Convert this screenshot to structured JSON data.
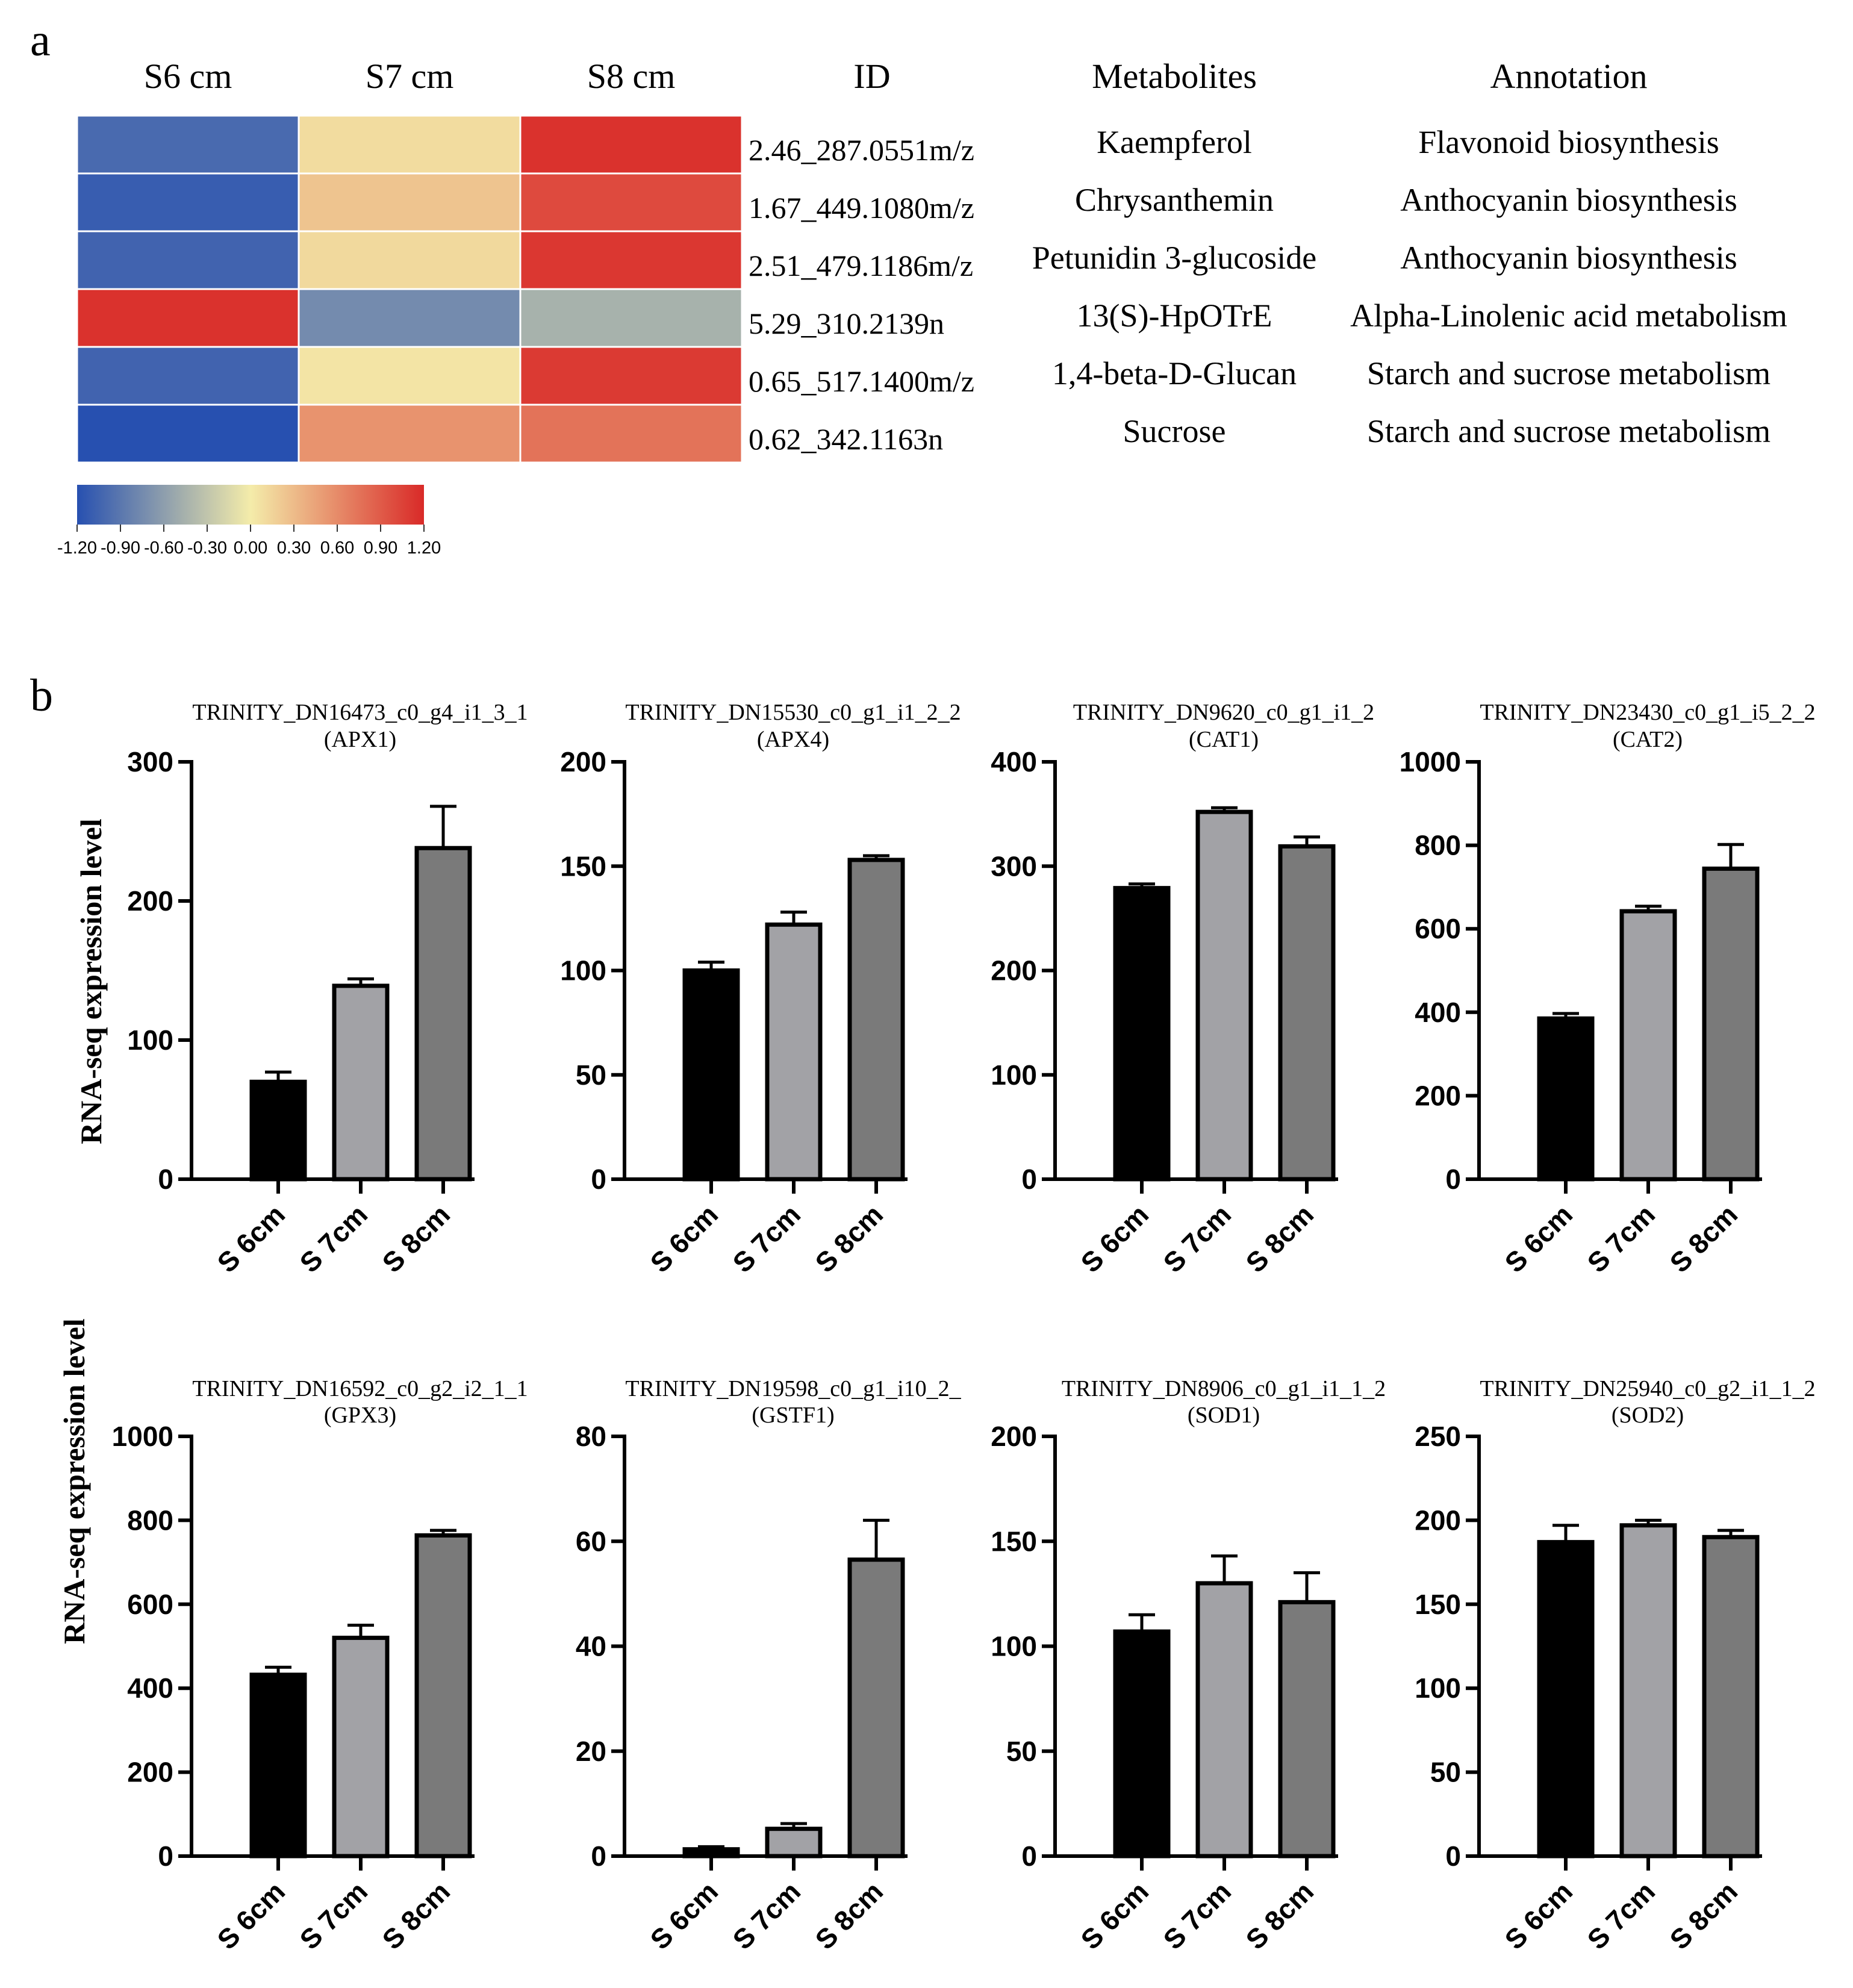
{
  "panel_a": {
    "label": "a",
    "columns": [
      "S6 cm",
      "S7 cm",
      "S8 cm"
    ],
    "headers": {
      "id": "ID",
      "metabolites": "Metabolites",
      "annotation": "Annotation"
    },
    "rows": [
      {
        "id": "2.46_287.0551m/z",
        "metabolite": "Kaempferol",
        "annotation": "Flavonoid biosynthesis",
        "values": [
          -1.0,
          0.1,
          1.15
        ]
      },
      {
        "id": "1.67_449.1080m/z",
        "metabolite": "Chrysanthemin",
        "annotation": "Anthocyanin biosynthesis",
        "values": [
          -1.1,
          0.25,
          1.0
        ]
      },
      {
        "id": "2.51_479.1186m/z",
        "metabolite": "Petunidin 3-glucoside",
        "annotation": "Anthocyanin biosynthesis",
        "values": [
          -1.05,
          0.12,
          1.12
        ]
      },
      {
        "id": "5.29_310.2139n",
        "metabolite": "13(S)-HpOTrE",
        "annotation": "Alpha-Linolenic acid metabolism",
        "values": [
          1.15,
          -0.75,
          -0.45
        ]
      },
      {
        "id": "0.65_517.1400m/z",
        "metabolite": "1,4-beta-D-Glucan",
        "annotation": "Starch and sucrose metabolism",
        "values": [
          -1.05,
          0.05,
          1.1
        ]
      },
      {
        "id": "0.62_342.1163n",
        "metabolite": "Sucrose",
        "annotation": "Starch and sucrose metabolism",
        "values": [
          -1.2,
          0.55,
          0.75
        ]
      }
    ],
    "colorbar": {
      "min": -1.2,
      "max": 1.2,
      "ticks": [
        "-1.20",
        "-0.90",
        "-0.60",
        "-0.30",
        "0.00",
        "0.30",
        "0.60",
        "0.90",
        "1.20"
      ],
      "colors": {
        "low": "#2750b0",
        "mid": "#f4ecaa",
        "high": "#d92a28"
      }
    }
  },
  "panel_b": {
    "label": "b"
  },
  "chart_data": [
    {
      "type": "bar",
      "title": "TRINITY_DN16473_c0_g4_i1_3_1",
      "subtitle": "(APX1)",
      "categories": [
        "S 6cm",
        "S 7cm",
        "S 8cm"
      ],
      "values": [
        70,
        139,
        238
      ],
      "errors": [
        7,
        5,
        30
      ],
      "ylim": [
        0,
        300
      ],
      "yticks": [
        "0",
        "100",
        "200",
        "300"
      ],
      "ylabel": "RNA-seq expression level",
      "bar_colors": [
        "#000000",
        "#a2a2a6",
        "#7a7a7a"
      ]
    },
    {
      "type": "bar",
      "title": "TRINITY_DN15530_c0_g1_i1_2_2",
      "subtitle": "(APX4)",
      "categories": [
        "S 6cm",
        "S 7cm",
        "S 8cm"
      ],
      "values": [
        100,
        122,
        153
      ],
      "errors": [
        4,
        6,
        2
      ],
      "ylim": [
        0,
        200
      ],
      "yticks": [
        "0",
        "50",
        "100",
        "150",
        "200"
      ],
      "ylabel": "",
      "bar_colors": [
        "#000000",
        "#a2a2a6",
        "#7a7a7a"
      ]
    },
    {
      "type": "bar",
      "title": "TRINITY_DN9620_c0_g1_i1_2",
      "subtitle": "(CAT1)",
      "categories": [
        "S 6cm",
        "S 7cm",
        "S 8cm"
      ],
      "values": [
        279,
        352,
        319
      ],
      "errors": [
        4,
        4,
        9
      ],
      "ylim": [
        0,
        400
      ],
      "yticks": [
        "0",
        "100",
        "200",
        "300",
        "400"
      ],
      "ylabel": "",
      "bar_colors": [
        "#000000",
        "#a2a2a6",
        "#7a7a7a"
      ]
    },
    {
      "type": "bar",
      "title": "TRINITY_DN23430_c0_g1_i5_2_2",
      "subtitle": "(CAT2)",
      "categories": [
        "S 6cm",
        "S 7cm",
        "S 8cm"
      ],
      "values": [
        385,
        642,
        744
      ],
      "errors": [
        12,
        12,
        58
      ],
      "ylim": [
        0,
        1000
      ],
      "yticks": [
        "0",
        "200",
        "400",
        "600",
        "800",
        "1000"
      ],
      "ylabel": "",
      "bar_colors": [
        "#000000",
        "#a2a2a6",
        "#7a7a7a"
      ]
    },
    {
      "type": "bar",
      "title": "TRINITY_DN16592_c0_g2_i2_1_1",
      "subtitle": "(GPX3)",
      "categories": [
        "S 6cm",
        "S 7cm",
        "S 8cm"
      ],
      "values": [
        432,
        520,
        764
      ],
      "errors": [
        18,
        30,
        12
      ],
      "ylim": [
        0,
        1000
      ],
      "yticks": [
        "0",
        "200",
        "400",
        "600",
        "800",
        "1000"
      ],
      "ylabel": "RNA-seq expression level",
      "bar_colors": [
        "#000000",
        "#a2a2a6",
        "#7a7a7a"
      ]
    },
    {
      "type": "bar",
      "title": "TRINITY_DN19598_c0_g1_i10_2_",
      "subtitle": "(GSTF1)",
      "categories": [
        "S 6cm",
        "S 7cm",
        "S 8cm"
      ],
      "values": [
        1.3,
        5.2,
        56.5
      ],
      "errors": [
        0.5,
        1,
        7.5
      ],
      "ylim": [
        0,
        80
      ],
      "yticks": [
        "0",
        "20",
        "40",
        "60",
        "80"
      ],
      "ylabel": "",
      "bar_colors": [
        "#000000",
        "#a2a2a6",
        "#7a7a7a"
      ]
    },
    {
      "type": "bar",
      "title": "TRINITY_DN8906_c0_g1_i1_1_2",
      "subtitle": "(SOD1)",
      "categories": [
        "S 6cm",
        "S 7cm",
        "S 8cm"
      ],
      "values": [
        107,
        130,
        121
      ],
      "errors": [
        8,
        13,
        14
      ],
      "ylim": [
        0,
        200
      ],
      "yticks": [
        "0",
        "50",
        "100",
        "150",
        "200"
      ],
      "ylabel": "",
      "bar_colors": [
        "#000000",
        "#a2a2a6",
        "#7a7a7a"
      ]
    },
    {
      "type": "bar",
      "title": "TRINITY_DN25940_c0_g2_i1_1_2",
      "subtitle": "(SOD2)",
      "categories": [
        "S 6cm",
        "S 7cm",
        "S 8cm"
      ],
      "values": [
        187,
        197,
        190
      ],
      "errors": [
        10,
        3,
        4
      ],
      "ylim": [
        0,
        250
      ],
      "yticks": [
        "0",
        "50",
        "100",
        "150",
        "200",
        "250"
      ],
      "ylabel": "",
      "bar_colors": [
        "#000000",
        "#a2a2a6",
        "#7a7a7a"
      ]
    }
  ]
}
